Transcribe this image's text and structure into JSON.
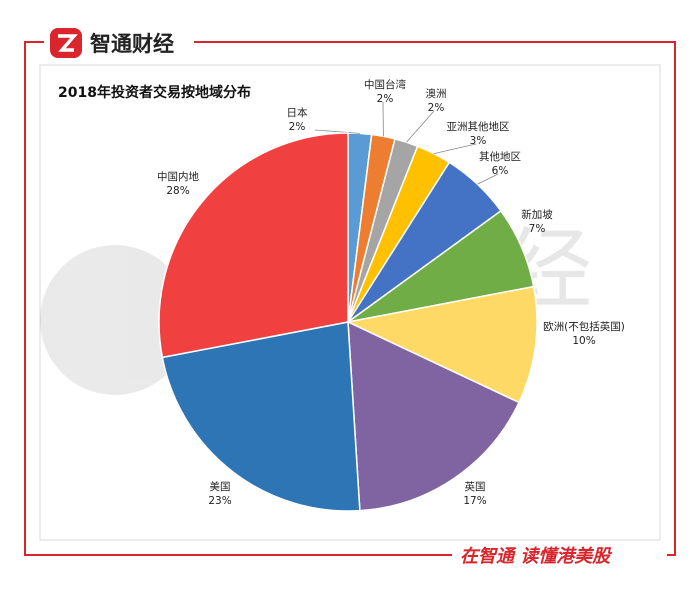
{
  "header": {
    "brand": "智通财经"
  },
  "watermark": "智通财经",
  "footer": {
    "slogan": "在智通 读懂港美股"
  },
  "chart_data": {
    "type": "pie",
    "title": "2018年投资者交易按地域分布",
    "categories": [
      "日本",
      "中国台湾",
      "澳洲",
      "亚洲其他地区",
      "其他地区",
      "新加坡",
      "欧洲(不包括英国)",
      "英国",
      "美国",
      "中国内地"
    ],
    "values": [
      2,
      2,
      2,
      3,
      6,
      7,
      10,
      17,
      23,
      28
    ],
    "value_labels": [
      "2%",
      "2%",
      "2%",
      "3%",
      "6%",
      "7%",
      "10%",
      "17%",
      "23%",
      "28%"
    ],
    "colors": [
      "#5b9bd5",
      "#ed7d31",
      "#a5a5a5",
      "#ffc000",
      "#4472c4",
      "#70ad47",
      "#ffd966",
      "#8064a2",
      "#2e75b6",
      "#f04040"
    ]
  }
}
